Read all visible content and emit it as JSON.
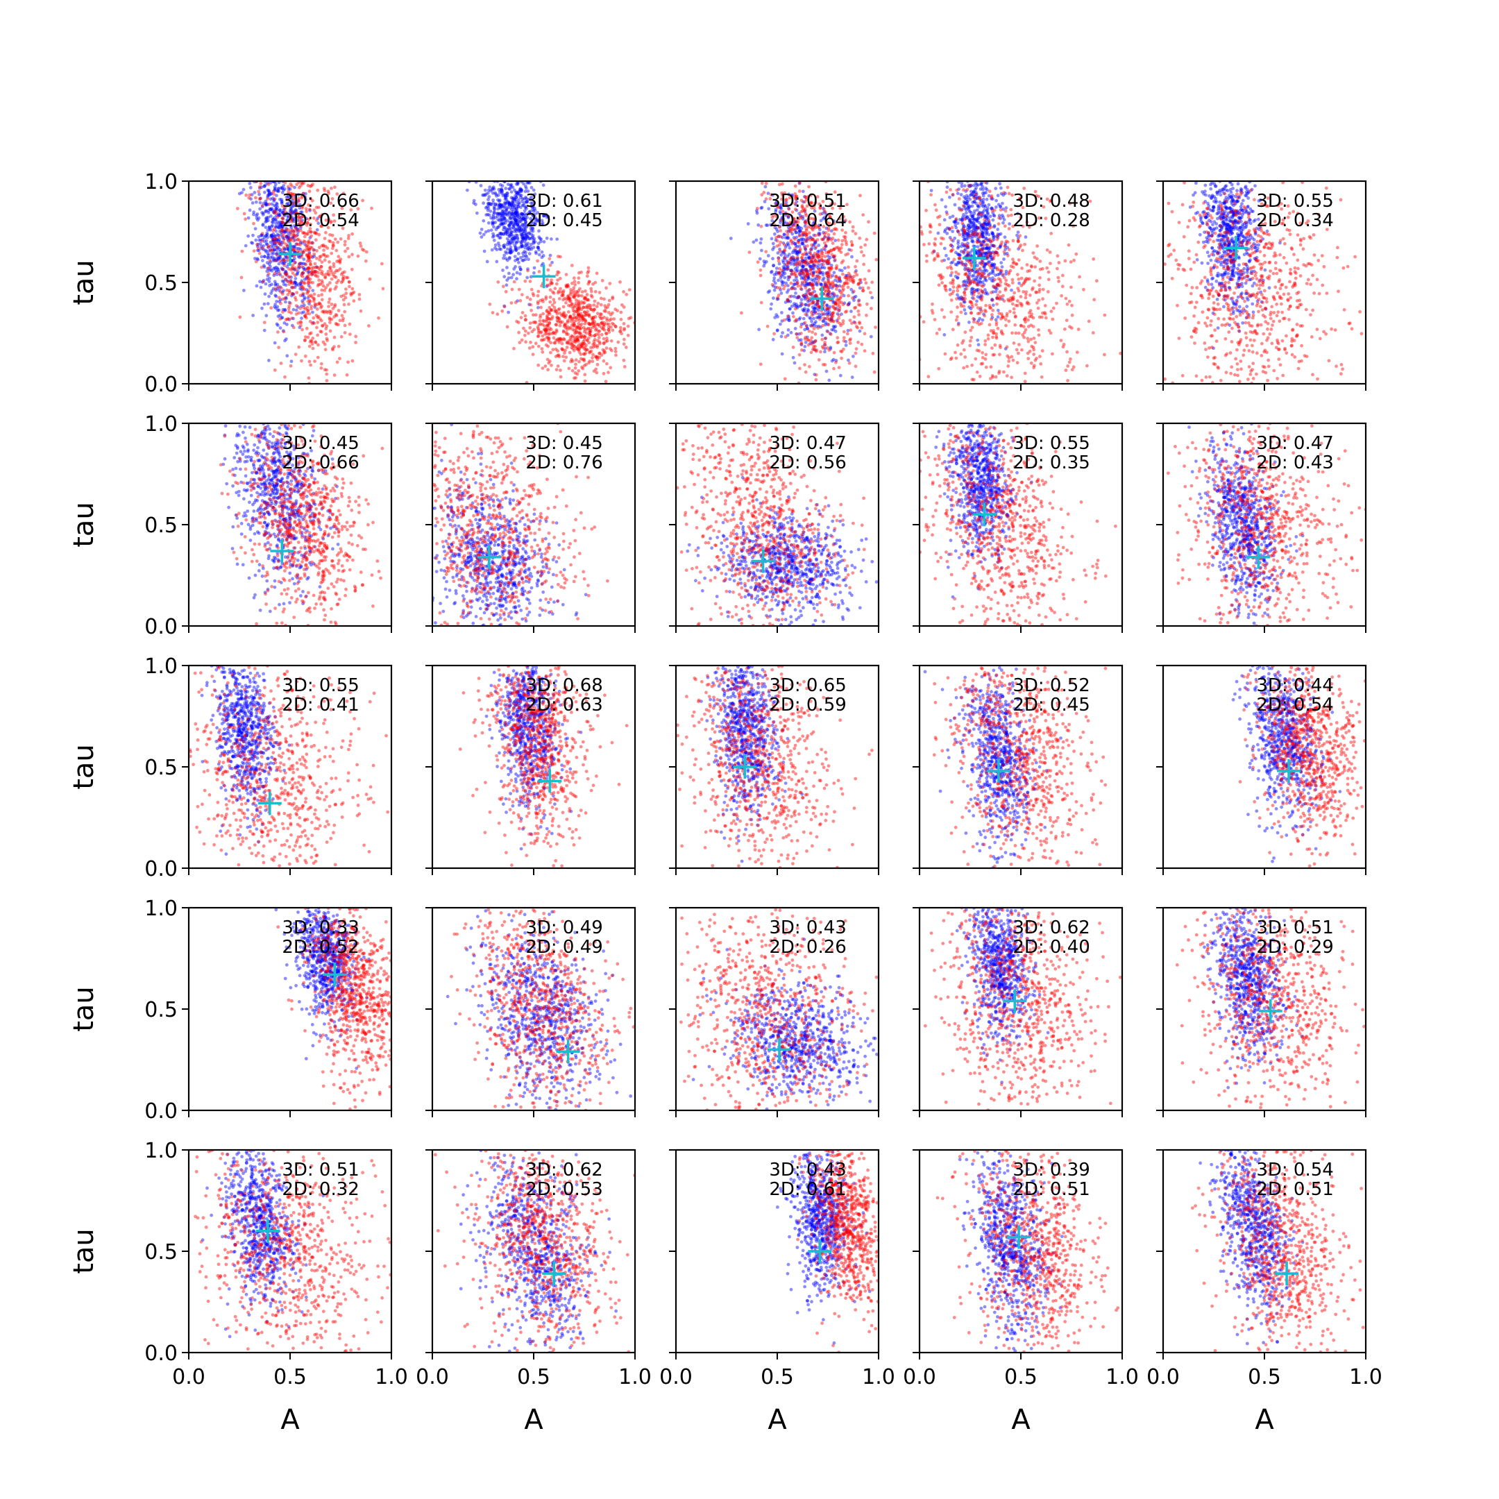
{
  "figure": {
    "rows": 5,
    "cols": 5,
    "xlabel": "A",
    "ylabel": "tau",
    "xlim": [
      0.0,
      1.0
    ],
    "ylim": [
      0.0,
      1.0
    ],
    "xticks": [
      "0.0",
      "0.5",
      "1.0"
    ],
    "yticks": [
      "0.0",
      "0.5",
      "1.0"
    ],
    "colors": {
      "series_3d": "#0000ff",
      "series_2d": "#ff0000",
      "marker": "#17becf",
      "axes": "#000000"
    }
  },
  "chart_data": [
    {
      "type": "scatter",
      "row": 0,
      "col": 0,
      "annotation": [
        "3D: 0.66",
        "2D: 0.54"
      ],
      "marker": {
        "x": 0.5,
        "y": 0.64
      },
      "cloud_3d": {
        "cx": 0.46,
        "cy": 0.72,
        "sx": 0.07,
        "sy": 0.22,
        "slope": -0.45
      },
      "cloud_2d": {
        "cx": 0.6,
        "cy": 0.6,
        "sx": 0.12,
        "sy": 0.26,
        "slope": -0.55
      }
    },
    {
      "type": "scatter",
      "row": 0,
      "col": 1,
      "annotation": [
        "3D: 0.61",
        "2D: 0.45"
      ],
      "marker": {
        "x": 0.55,
        "y": 0.53
      },
      "cloud_3d": {
        "cx": 0.4,
        "cy": 0.82,
        "sx": 0.07,
        "sy": 0.14,
        "slope": -0.6
      },
      "cloud_2d": {
        "cx": 0.7,
        "cy": 0.3,
        "sx": 0.13,
        "sy": 0.12,
        "slope": -0.4
      }
    },
    {
      "type": "scatter",
      "row": 0,
      "col": 2,
      "annotation": [
        "3D: 0.51",
        "2D: 0.64"
      ],
      "marker": {
        "x": 0.72,
        "y": 0.42
      },
      "cloud_3d": {
        "cx": 0.65,
        "cy": 0.55,
        "sx": 0.1,
        "sy": 0.2,
        "slope": -0.8
      },
      "cloud_2d": {
        "cx": 0.72,
        "cy": 0.55,
        "sx": 0.12,
        "sy": 0.24,
        "slope": -0.7
      }
    },
    {
      "type": "scatter",
      "row": 0,
      "col": 3,
      "annotation": [
        "3D: 0.48",
        "2D: 0.28"
      ],
      "marker": {
        "x": 0.27,
        "y": 0.62
      },
      "cloud_3d": {
        "cx": 0.29,
        "cy": 0.72,
        "sx": 0.07,
        "sy": 0.18,
        "slope": -0.2
      },
      "cloud_2d": {
        "cx": 0.4,
        "cy": 0.45,
        "sx": 0.2,
        "sy": 0.3,
        "slope": -0.7
      }
    },
    {
      "type": "scatter",
      "row": 0,
      "col": 4,
      "annotation": [
        "3D: 0.55",
        "2D: 0.34"
      ],
      "marker": {
        "x": 0.36,
        "y": 0.67
      },
      "cloud_3d": {
        "cx": 0.33,
        "cy": 0.75,
        "sx": 0.07,
        "sy": 0.18,
        "slope": -0.3
      },
      "cloud_2d": {
        "cx": 0.45,
        "cy": 0.5,
        "sx": 0.2,
        "sy": 0.3,
        "slope": -0.6
      }
    },
    {
      "type": "scatter",
      "row": 1,
      "col": 0,
      "annotation": [
        "3D: 0.45",
        "2D: 0.66"
      ],
      "marker": {
        "x": 0.46,
        "y": 0.37
      },
      "cloud_3d": {
        "cx": 0.45,
        "cy": 0.65,
        "sx": 0.1,
        "sy": 0.22,
        "slope": -0.6
      },
      "cloud_2d": {
        "cx": 0.58,
        "cy": 0.5,
        "sx": 0.14,
        "sy": 0.24,
        "slope": -0.7
      }
    },
    {
      "type": "scatter",
      "row": 1,
      "col": 1,
      "annotation": [
        "3D: 0.45",
        "2D: 0.76"
      ],
      "marker": {
        "x": 0.28,
        "y": 0.34
      },
      "cloud_3d": {
        "cx": 0.3,
        "cy": 0.3,
        "sx": 0.14,
        "sy": 0.2,
        "slope": -0.8
      },
      "cloud_2d": {
        "cx": 0.3,
        "cy": 0.45,
        "sx": 0.2,
        "sy": 0.28,
        "slope": -0.6
      }
    },
    {
      "type": "scatter",
      "row": 1,
      "col": 2,
      "annotation": [
        "3D: 0.47",
        "2D: 0.56"
      ],
      "marker": {
        "x": 0.43,
        "y": 0.32
      },
      "cloud_3d": {
        "cx": 0.55,
        "cy": 0.3,
        "sx": 0.16,
        "sy": 0.12,
        "slope": -0.4
      },
      "cloud_2d": {
        "cx": 0.42,
        "cy": 0.5,
        "sx": 0.18,
        "sy": 0.28,
        "slope": -0.6
      }
    },
    {
      "type": "scatter",
      "row": 1,
      "col": 3,
      "annotation": [
        "3D: 0.55",
        "2D: 0.35"
      ],
      "marker": {
        "x": 0.32,
        "y": 0.55
      },
      "cloud_3d": {
        "cx": 0.3,
        "cy": 0.72,
        "sx": 0.07,
        "sy": 0.18,
        "slope": -0.3
      },
      "cloud_2d": {
        "cx": 0.4,
        "cy": 0.5,
        "sx": 0.18,
        "sy": 0.3,
        "slope": -0.6
      }
    },
    {
      "type": "scatter",
      "row": 1,
      "col": 4,
      "annotation": [
        "3D: 0.47",
        "2D: 0.43"
      ],
      "marker": {
        "x": 0.47,
        "y": 0.34
      },
      "cloud_3d": {
        "cx": 0.4,
        "cy": 0.5,
        "sx": 0.08,
        "sy": 0.2,
        "slope": -0.6
      },
      "cloud_2d": {
        "cx": 0.5,
        "cy": 0.5,
        "sx": 0.18,
        "sy": 0.28,
        "slope": -0.6
      }
    },
    {
      "type": "scatter",
      "row": 2,
      "col": 0,
      "annotation": [
        "3D: 0.55",
        "2D: 0.41"
      ],
      "marker": {
        "x": 0.4,
        "y": 0.32
      },
      "cloud_3d": {
        "cx": 0.28,
        "cy": 0.7,
        "sx": 0.07,
        "sy": 0.2,
        "slope": -0.4
      },
      "cloud_2d": {
        "cx": 0.4,
        "cy": 0.45,
        "sx": 0.22,
        "sy": 0.3,
        "slope": -0.5
      }
    },
    {
      "type": "scatter",
      "row": 2,
      "col": 1,
      "annotation": [
        "3D: 0.68",
        "2D: 0.63"
      ],
      "marker": {
        "x": 0.58,
        "y": 0.43
      },
      "cloud_3d": {
        "cx": 0.48,
        "cy": 0.72,
        "sx": 0.07,
        "sy": 0.2,
        "slope": -0.3
      },
      "cloud_2d": {
        "cx": 0.52,
        "cy": 0.65,
        "sx": 0.12,
        "sy": 0.25,
        "slope": -0.4
      }
    },
    {
      "type": "scatter",
      "row": 2,
      "col": 2,
      "annotation": [
        "3D: 0.65",
        "2D: 0.59"
      ],
      "marker": {
        "x": 0.34,
        "y": 0.5
      },
      "cloud_3d": {
        "cx": 0.35,
        "cy": 0.68,
        "sx": 0.07,
        "sy": 0.2,
        "slope": -0.4
      },
      "cloud_2d": {
        "cx": 0.42,
        "cy": 0.55,
        "sx": 0.18,
        "sy": 0.3,
        "slope": -0.5
      }
    },
    {
      "type": "scatter",
      "row": 2,
      "col": 3,
      "annotation": [
        "3D: 0.52",
        "2D: 0.45"
      ],
      "marker": {
        "x": 0.39,
        "y": 0.48
      },
      "cloud_3d": {
        "cx": 0.4,
        "cy": 0.55,
        "sx": 0.08,
        "sy": 0.22,
        "slope": -0.6
      },
      "cloud_2d": {
        "cx": 0.5,
        "cy": 0.55,
        "sx": 0.16,
        "sy": 0.28,
        "slope": -0.6
      }
    },
    {
      "type": "scatter",
      "row": 2,
      "col": 4,
      "annotation": [
        "3D: 0.44",
        "2D: 0.54"
      ],
      "marker": {
        "x": 0.62,
        "y": 0.48
      },
      "cloud_3d": {
        "cx": 0.6,
        "cy": 0.65,
        "sx": 0.08,
        "sy": 0.2,
        "slope": -0.5
      },
      "cloud_2d": {
        "cx": 0.72,
        "cy": 0.6,
        "sx": 0.12,
        "sy": 0.24,
        "slope": -0.6
      }
    },
    {
      "type": "scatter",
      "row": 3,
      "col": 0,
      "annotation": [
        "3D: 0.33",
        "2D: 0.52"
      ],
      "marker": {
        "x": 0.72,
        "y": 0.67
      },
      "cloud_3d": {
        "cx": 0.68,
        "cy": 0.75,
        "sx": 0.07,
        "sy": 0.15,
        "slope": -0.5
      },
      "cloud_2d": {
        "cx": 0.82,
        "cy": 0.6,
        "sx": 0.1,
        "sy": 0.22,
        "slope": -0.6
      }
    },
    {
      "type": "scatter",
      "row": 3,
      "col": 1,
      "annotation": [
        "3D: 0.49",
        "2D: 0.49"
      ],
      "marker": {
        "x": 0.67,
        "y": 0.29
      },
      "cloud_3d": {
        "cx": 0.55,
        "cy": 0.45,
        "sx": 0.14,
        "sy": 0.22,
        "slope": -0.9
      },
      "cloud_2d": {
        "cx": 0.55,
        "cy": 0.5,
        "sx": 0.16,
        "sy": 0.28,
        "slope": -0.8
      }
    },
    {
      "type": "scatter",
      "row": 3,
      "col": 2,
      "annotation": [
        "3D: 0.43",
        "2D: 0.26"
      ],
      "marker": {
        "x": 0.51,
        "y": 0.3
      },
      "cloud_3d": {
        "cx": 0.6,
        "cy": 0.35,
        "sx": 0.16,
        "sy": 0.14,
        "slope": -0.6
      },
      "cloud_2d": {
        "cx": 0.45,
        "cy": 0.45,
        "sx": 0.22,
        "sy": 0.3,
        "slope": -0.6
      }
    },
    {
      "type": "scatter",
      "row": 3,
      "col": 3,
      "annotation": [
        "3D: 0.62",
        "2D: 0.40"
      ],
      "marker": {
        "x": 0.47,
        "y": 0.54
      },
      "cloud_3d": {
        "cx": 0.4,
        "cy": 0.72,
        "sx": 0.07,
        "sy": 0.18,
        "slope": -0.4
      },
      "cloud_2d": {
        "cx": 0.5,
        "cy": 0.55,
        "sx": 0.18,
        "sy": 0.3,
        "slope": -0.6
      }
    },
    {
      "type": "scatter",
      "row": 3,
      "col": 4,
      "annotation": [
        "3D: 0.51",
        "2D: 0.29"
      ],
      "marker": {
        "x": 0.53,
        "y": 0.49
      },
      "cloud_3d": {
        "cx": 0.42,
        "cy": 0.65,
        "sx": 0.08,
        "sy": 0.2,
        "slope": -0.5
      },
      "cloud_2d": {
        "cx": 0.55,
        "cy": 0.55,
        "sx": 0.18,
        "sy": 0.28,
        "slope": -0.6
      }
    },
    {
      "type": "scatter",
      "row": 4,
      "col": 0,
      "annotation": [
        "3D: 0.51",
        "2D: 0.32"
      ],
      "marker": {
        "x": 0.39,
        "y": 0.6
      },
      "cloud_3d": {
        "cx": 0.35,
        "cy": 0.65,
        "sx": 0.08,
        "sy": 0.2,
        "slope": -0.5
      },
      "cloud_2d": {
        "cx": 0.5,
        "cy": 0.5,
        "sx": 0.2,
        "sy": 0.28,
        "slope": -0.6
      }
    },
    {
      "type": "scatter",
      "row": 4,
      "col": 1,
      "annotation": [
        "3D: 0.62",
        "2D: 0.53"
      ],
      "marker": {
        "x": 0.6,
        "y": 0.39
      },
      "cloud_3d": {
        "cx": 0.52,
        "cy": 0.5,
        "sx": 0.12,
        "sy": 0.22,
        "slope": -0.8
      },
      "cloud_2d": {
        "cx": 0.55,
        "cy": 0.55,
        "sx": 0.15,
        "sy": 0.26,
        "slope": -0.7
      }
    },
    {
      "type": "scatter",
      "row": 4,
      "col": 2,
      "annotation": [
        "3D: 0.43",
        "2D: 0.61"
      ],
      "marker": {
        "x": 0.71,
        "y": 0.5
      },
      "cloud_3d": {
        "cx": 0.72,
        "cy": 0.68,
        "sx": 0.07,
        "sy": 0.18,
        "slope": -0.4
      },
      "cloud_2d": {
        "cx": 0.85,
        "cy": 0.65,
        "sx": 0.08,
        "sy": 0.22,
        "slope": -0.5
      }
    },
    {
      "type": "scatter",
      "row": 4,
      "col": 3,
      "annotation": [
        "3D: 0.39",
        "2D: 0.51"
      ],
      "marker": {
        "x": 0.49,
        "y": 0.57
      },
      "cloud_3d": {
        "cx": 0.45,
        "cy": 0.55,
        "sx": 0.08,
        "sy": 0.22,
        "slope": -0.5
      },
      "cloud_2d": {
        "cx": 0.58,
        "cy": 0.5,
        "sx": 0.16,
        "sy": 0.28,
        "slope": -0.6
      }
    },
    {
      "type": "scatter",
      "row": 4,
      "col": 4,
      "annotation": [
        "3D: 0.54",
        "2D: 0.51"
      ],
      "marker": {
        "x": 0.61,
        "y": 0.39
      },
      "cloud_3d": {
        "cx": 0.45,
        "cy": 0.62,
        "sx": 0.08,
        "sy": 0.22,
        "slope": -0.6
      },
      "cloud_2d": {
        "cx": 0.6,
        "cy": 0.5,
        "sx": 0.15,
        "sy": 0.28,
        "slope": -0.7
      }
    }
  ]
}
